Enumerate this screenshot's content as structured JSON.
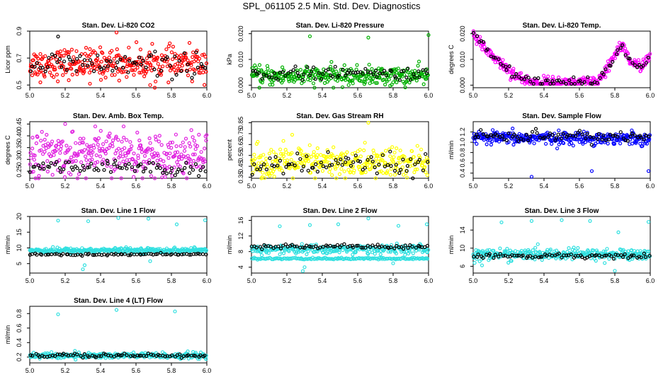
{
  "figure_title": "SPL_061105  2.5 Min. Std. Dev. Diagnostics",
  "chart_data": [
    {
      "type": "scatter",
      "title": "Stan. Dev. Li-820 CO2",
      "ylabel": "Licor ppm",
      "color": "#ff0000",
      "xlim": [
        5.0,
        6.0
      ],
      "ylim": [
        0.48,
        0.9
      ],
      "xticks": [
        5.0,
        5.2,
        5.4,
        5.6,
        5.8,
        6.0
      ],
      "xtick_labels": [
        "5.0",
        "5.2",
        "5.4",
        "5.6",
        "5.8",
        "6.0"
      ],
      "yticks": [
        0.5,
        0.7,
        0.9
      ],
      "ytick_labels": [
        "0.5",
        "0.7",
        "0.9"
      ],
      "series": [
        {
          "name": "main",
          "mean": 0.66,
          "sd": 0.055,
          "n": 330
        },
        {
          "name": "black",
          "mean": 0.65,
          "sd": 0.045,
          "n": 75
        }
      ],
      "outliers": [
        [
          5.16,
          0.86,
          "k"
        ],
        [
          5.49,
          0.89,
          "r"
        ],
        [
          5.06,
          0.52,
          "r"
        ],
        [
          5.34,
          0.51,
          "r"
        ],
        [
          5.68,
          0.5,
          "r"
        ]
      ]
    },
    {
      "type": "scatter",
      "title": "Stan. Dev. Li-820 Pressure",
      "ylabel": "kPa",
      "color": "#00b000",
      "xlim": [
        5.0,
        6.0
      ],
      "ylim": [
        -0.001,
        0.021
      ],
      "xticks": [
        5.0,
        5.2,
        5.4,
        5.6,
        5.8,
        6.0
      ],
      "xtick_labels": [
        "5.0",
        "5.2",
        "5.4",
        "5.6",
        "5.8",
        "6.0"
      ],
      "yticks": [
        0.0,
        0.01,
        0.02
      ],
      "ytick_labels": [
        "0.000",
        "0.010",
        "0.020"
      ],
      "series": [
        {
          "name": "main",
          "mean": 0.0035,
          "sd": 0.0018,
          "n": 330
        },
        {
          "name": "black",
          "mean": 0.0045,
          "sd": 0.0012,
          "n": 75
        }
      ],
      "outliers": [
        [
          5.33,
          0.019,
          "g"
        ],
        [
          5.66,
          0.0185,
          "g"
        ],
        [
          6.0,
          0.0195,
          "g"
        ]
      ]
    },
    {
      "type": "scatter",
      "title": "Stan. Dev. Li-820 Temp.",
      "ylabel": "degrees C",
      "color": "#ff00ff",
      "xlim": [
        5.0,
        6.0
      ],
      "ylim": [
        -0.001,
        0.021
      ],
      "xticks": [
        5.0,
        5.2,
        5.4,
        5.6,
        5.8,
        6.0
      ],
      "xtick_labels": [
        "5.0",
        "5.2",
        "5.4",
        "5.6",
        "5.8",
        "6.0"
      ],
      "yticks": [
        0.0,
        0.01,
        0.02
      ],
      "ytick_labels": [
        "0.000",
        "0.010",
        "0.020"
      ],
      "curve": [
        [
          5.0,
          0.019
        ],
        [
          5.05,
          0.016
        ],
        [
          5.1,
          0.012
        ],
        [
          5.2,
          0.006
        ],
        [
          5.28,
          0.002
        ],
        [
          5.35,
          0.0008
        ],
        [
          5.5,
          0.0008
        ],
        [
          5.7,
          0.0008
        ],
        [
          5.75,
          0.005
        ],
        [
          5.8,
          0.012
        ],
        [
          5.84,
          0.016
        ],
        [
          5.88,
          0.01
        ],
        [
          5.93,
          0.007
        ],
        [
          6.0,
          0.011
        ]
      ],
      "series": [
        {
          "name": "main",
          "sd": 0.0012,
          "n": 330
        },
        {
          "name": "black",
          "sd": 0.001,
          "n": 75
        }
      ],
      "outliers": []
    },
    {
      "type": "scatter",
      "title": "Stan. Dev. Amb. Box Temp.",
      "ylabel": "degrees C",
      "color": "#e020e0",
      "xlim": [
        5.0,
        6.0
      ],
      "ylim": [
        0.22,
        0.46
      ],
      "xticks": [
        5.0,
        5.2,
        5.4,
        5.6,
        5.8,
        6.0
      ],
      "xtick_labels": [
        "5.0",
        "5.2",
        "5.4",
        "5.6",
        "5.8",
        "6.0"
      ],
      "yticks": [
        0.25,
        0.3,
        0.35,
        0.4,
        0.45
      ],
      "ytick_labels": [
        "0.25",
        "0.30",
        "0.35",
        "0.40",
        "0.45"
      ],
      "series": [
        {
          "name": "main",
          "mean": 0.32,
          "sd": 0.045,
          "n": 330
        },
        {
          "name": "black",
          "mean": 0.265,
          "sd": 0.015,
          "n": 75
        }
      ],
      "outliers": [
        [
          5.2,
          0.45,
          "m"
        ],
        [
          5.37,
          0.44,
          "m"
        ],
        [
          5.53,
          0.44,
          "m"
        ]
      ]
    },
    {
      "type": "scatter",
      "title": "Stan. Dev. Gas Stream RH",
      "ylabel": "percent",
      "color": "#ffff00",
      "xlim": [
        5.0,
        6.0
      ],
      "ylim": [
        0.34,
        0.86
      ],
      "xticks": [
        5.0,
        5.2,
        5.4,
        5.6,
        5.8,
        6.0
      ],
      "xtick_labels": [
        "5.0",
        "5.2",
        "5.4",
        "5.6",
        "5.8",
        "6.0"
      ],
      "yticks": [
        0.35,
        0.45,
        0.55,
        0.65,
        0.75,
        0.85
      ],
      "ytick_labels": [
        "0.35",
        "0.45",
        "0.55",
        "0.65",
        "0.75",
        "0.85"
      ],
      "series": [
        {
          "name": "main",
          "mean": 0.48,
          "sd": 0.075,
          "n": 330
        },
        {
          "name": "black",
          "mean": 0.46,
          "sd": 0.05,
          "n": 75
        }
      ],
      "outliers": [
        [
          5.23,
          0.74,
          "y"
        ],
        [
          5.66,
          0.85,
          "y"
        ]
      ]
    },
    {
      "type": "scatter",
      "title": "Stan. Dev. Sample Flow",
      "ylabel": "ml/min",
      "color": "#0000ff",
      "xlim": [
        5.0,
        6.0
      ],
      "ylim": [
        0.3,
        1.4
      ],
      "xticks": [
        5.0,
        5.2,
        5.4,
        5.6,
        5.8,
        6.0
      ],
      "xtick_labels": [
        "5.0",
        "5.2",
        "5.4",
        "5.6",
        "5.8",
        "6.0"
      ],
      "yticks": [
        0.4,
        0.6,
        0.8,
        1.0,
        1.2
      ],
      "ytick_labels": [
        "0.4",
        "0.6",
        "0.8",
        "1.0",
        "1.2"
      ],
      "series": [
        {
          "name": "main",
          "mean": 1.08,
          "sd": 0.06,
          "n": 330
        },
        {
          "name": "black",
          "mean": 1.12,
          "sd": 0.05,
          "n": 75
        }
      ],
      "outliers": [
        [
          5.33,
          0.33,
          "b"
        ],
        [
          5.67,
          0.44,
          "b"
        ],
        [
          5.99,
          0.44,
          "b"
        ]
      ]
    },
    {
      "type": "scatter",
      "title": "Stan. Dev. Line 1 Flow",
      "ylabel": "ml/min",
      "color": "#30e0e0",
      "xlim": [
        5.0,
        6.0
      ],
      "ylim": [
        2,
        20
      ],
      "xticks": [
        5.0,
        5.2,
        5.4,
        5.6,
        5.8,
        6.0
      ],
      "xtick_labels": [
        "5.0",
        "5.2",
        "5.4",
        "5.6",
        "5.8",
        "6.0"
      ],
      "yticks": [
        5,
        10,
        15,
        20
      ],
      "ytick_labels": [
        "5",
        "10",
        "15",
        "20"
      ],
      "series": [
        {
          "name": "main",
          "mean": 9.2,
          "sd": 0.4,
          "n": 330
        },
        {
          "name": "black",
          "mean": 7.9,
          "sd": 0.15,
          "n": 75
        }
      ],
      "outliers": [
        [
          5.16,
          18.7,
          "c"
        ],
        [
          5.33,
          18.5,
          "c"
        ],
        [
          5.5,
          19.5,
          "c"
        ],
        [
          5.67,
          19.3,
          "c"
        ],
        [
          5.83,
          17.5,
          "c"
        ],
        [
          5.99,
          18.8,
          "c"
        ],
        [
          5.3,
          3.2,
          "c"
        ],
        [
          5.31,
          4.5,
          "c"
        ],
        [
          5.68,
          5.8,
          "c"
        ]
      ]
    },
    {
      "type": "scatter",
      "title": "Stan. Dev. Line 2 Flow",
      "ylabel": "ml/min",
      "color": "#30e0e0",
      "xlim": [
        5.0,
        6.0
      ],
      "ylim": [
        2.5,
        17
      ],
      "xticks": [
        5.0,
        5.2,
        5.4,
        5.6,
        5.8,
        6.0
      ],
      "xtick_labels": [
        "5.0",
        "5.2",
        "5.4",
        "5.6",
        "5.8",
        "6.0"
      ],
      "yticks": [
        4,
        8,
        12,
        16
      ],
      "ytick_labels": [
        "4",
        "8",
        "12",
        "16"
      ],
      "series": [
        {
          "name": "main",
          "mean": 8.6,
          "sd": 0.6,
          "n": 260
        },
        {
          "name": "band",
          "mean": 6.2,
          "sd": 0.12,
          "n": 160
        },
        {
          "name": "black",
          "mean": 9.3,
          "sd": 0.35,
          "n": 75
        }
      ],
      "outliers": [
        [
          5.16,
          14.5,
          "c"
        ],
        [
          5.33,
          14.8,
          "c"
        ],
        [
          5.49,
          15.0,
          "c"
        ],
        [
          5.66,
          16.5,
          "c"
        ],
        [
          5.83,
          14.6,
          "c"
        ],
        [
          5.99,
          15.0,
          "c"
        ],
        [
          5.29,
          3.0,
          "c"
        ],
        [
          5.3,
          4.0,
          "c"
        ],
        [
          5.8,
          5.0,
          "c"
        ]
      ]
    },
    {
      "type": "scatter",
      "title": "Stan. Dev. Line 3 Flow",
      "ylabel": "ml/min",
      "color": "#30e0e0",
      "xlim": [
        5.0,
        6.0
      ],
      "ylim": [
        4.5,
        17
      ],
      "xticks": [
        5.0,
        5.2,
        5.4,
        5.6,
        5.8,
        6.0
      ],
      "xtick_labels": [
        "5.0",
        "5.2",
        "5.4",
        "5.6",
        "5.8",
        "6.0"
      ],
      "yticks": [
        6,
        10,
        14
      ],
      "ytick_labels": [
        "6",
        "10",
        "14"
      ],
      "series": [
        {
          "name": "main",
          "mean": 8.6,
          "sd": 0.6,
          "n": 330
        },
        {
          "name": "black",
          "mean": 8.3,
          "sd": 0.25,
          "n": 75
        }
      ],
      "outliers": [
        [
          5.16,
          15.7,
          "c"
        ],
        [
          5.33,
          16.0,
          "c"
        ],
        [
          5.5,
          16.2,
          "c"
        ],
        [
          5.66,
          16.0,
          "c"
        ],
        [
          5.82,
          13.5,
          "c"
        ],
        [
          5.99,
          15.8,
          "c"
        ],
        [
          5.8,
          5.0,
          "c"
        ],
        [
          5.05,
          6.2,
          "c"
        ]
      ]
    },
    {
      "type": "scatter",
      "title": "Stan. Dev. Line 4 (LT) Flow",
      "ylabel": "ml/min",
      "color": "#30e0e0",
      "xlim": [
        5.0,
        6.0
      ],
      "ylim": [
        0.12,
        0.9
      ],
      "xticks": [
        5.0,
        5.2,
        5.4,
        5.6,
        5.8,
        6.0
      ],
      "xtick_labels": [
        "5.0",
        "5.2",
        "5.4",
        "5.6",
        "5.8",
        "6.0"
      ],
      "yticks": [
        0.2,
        0.4,
        0.6,
        0.8
      ],
      "ytick_labels": [
        "0.2",
        "0.4",
        "0.6",
        "0.8"
      ],
      "series": [
        {
          "name": "main",
          "mean": 0.22,
          "sd": 0.02,
          "n": 330
        },
        {
          "name": "black",
          "mean": 0.22,
          "sd": 0.015,
          "n": 75
        }
      ],
      "outliers": [
        [
          5.16,
          0.79,
          "c"
        ],
        [
          5.49,
          0.85,
          "c"
        ],
        [
          5.82,
          0.83,
          "c"
        ]
      ]
    }
  ]
}
